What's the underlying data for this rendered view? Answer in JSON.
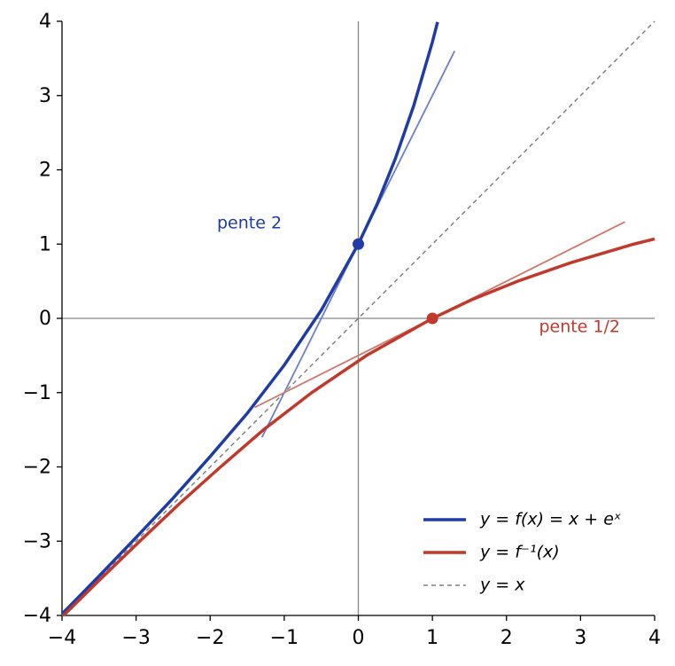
{
  "chart_data": {
    "type": "line",
    "xlim": [
      -4,
      4
    ],
    "ylim": [
      -4,
      4
    ],
    "xticks": [
      {
        "value": -4,
        "label": "−4"
      },
      {
        "value": -3,
        "label": "−3"
      },
      {
        "value": -2,
        "label": "−2"
      },
      {
        "value": -1,
        "label": "−1"
      },
      0,
      1,
      2,
      3,
      4
    ],
    "yticks": [
      {
        "value": -4,
        "label": "−4"
      },
      {
        "value": -3,
        "label": "−3"
      },
      {
        "value": -2,
        "label": "−2"
      },
      {
        "value": -1,
        "label": "−1"
      },
      0,
      1,
      2,
      3,
      4
    ],
    "legend": "lower right",
    "series": [
      {
        "name": "y = f(x) = x + eˣ",
        "color": "#1f3ca6",
        "width": 3.5,
        "dashed": false,
        "x": [
          -4,
          -3.5,
          -3,
          -2.5,
          -2,
          -1.5,
          -1,
          -0.5,
          0,
          0.25,
          0.5,
          0.75,
          1,
          1.07
        ],
        "values": [
          -3.98,
          -3.47,
          -2.95,
          -2.42,
          -1.86,
          -1.28,
          -0.63,
          0.11,
          1,
          1.53,
          2.15,
          2.87,
          3.72,
          3.99
        ]
      },
      {
        "name": "y = f⁻¹(x)",
        "color": "#c0392b",
        "width": 3.5,
        "dashed": false,
        "x": [
          -3.98,
          -3.47,
          -2.95,
          -2.42,
          -1.86,
          -1.28,
          -0.63,
          0.11,
          1,
          1.53,
          2.15,
          2.87,
          3.72,
          4
        ],
        "values": [
          -4,
          -3.5,
          -3,
          -2.5,
          -2,
          -1.5,
          -1,
          -0.5,
          0,
          0.25,
          0.5,
          0.75,
          1,
          1.07
        ]
      },
      {
        "name": "y = x",
        "color": "#808080",
        "width": 1.5,
        "dashed": true,
        "x": [
          -4,
          4
        ],
        "values": [
          -4,
          4
        ]
      },
      {
        "color": "#6a7fc8",
        "width": 1.8,
        "dashed": false,
        "x": [
          -1.3,
          1.3
        ],
        "values": [
          -1.6,
          3.6
        ]
      },
      {
        "color": "#d0756a",
        "width": 1.8,
        "dashed": false,
        "x": [
          -1.4,
          3.6
        ],
        "values": [
          -1.2,
          1.3
        ]
      }
    ],
    "points": [
      {
        "x": 0,
        "y": 1,
        "color": "#1f3ca6"
      },
      {
        "x": 1,
        "y": 0,
        "color": "#c0392b"
      }
    ],
    "annotations": [
      {
        "text": "pente 2",
        "color": "#1f3ca6"
      },
      {
        "text": "pente 1/2",
        "color": "#c0392b"
      }
    ]
  }
}
